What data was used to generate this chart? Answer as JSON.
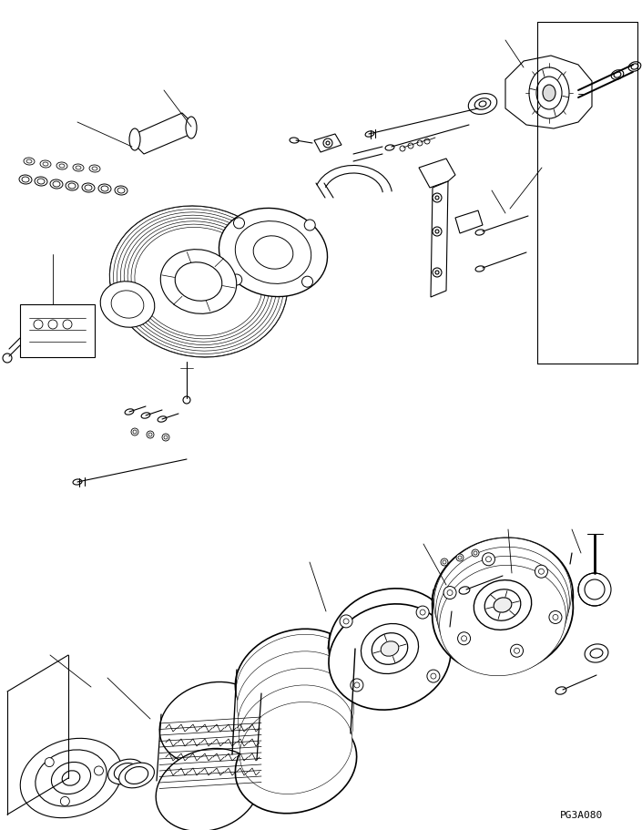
{
  "background_color": "#ffffff",
  "line_color": "#000000",
  "page_code": "PG3A080",
  "figsize": [
    7.05,
    9.12
  ],
  "dpi": 100
}
